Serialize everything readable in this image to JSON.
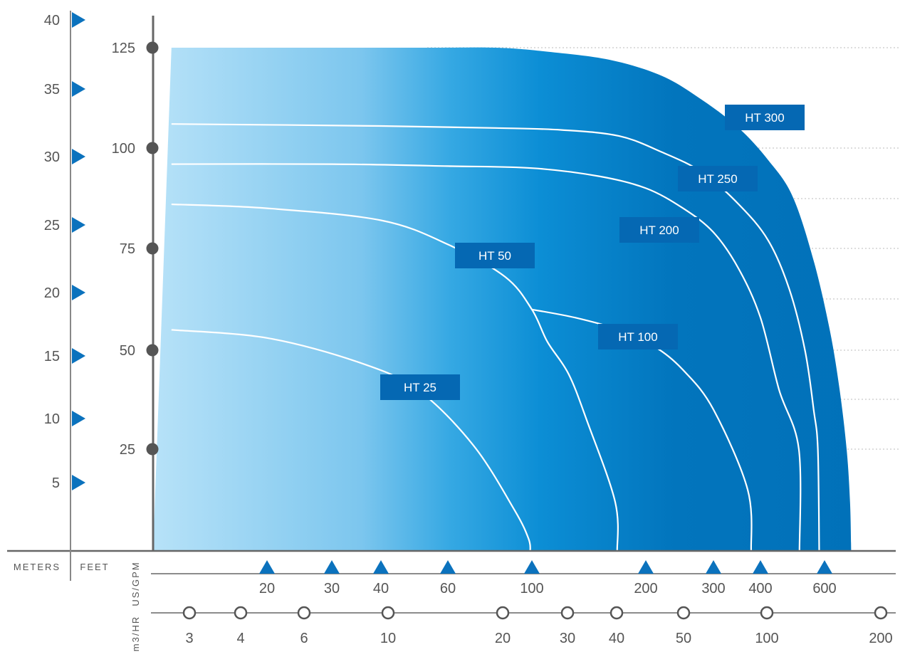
{
  "chart_data": {
    "type": "area",
    "axes": {
      "meters": {
        "unit": "METERS",
        "ticks": [
          5,
          10,
          15,
          20,
          25,
          30,
          35,
          40
        ]
      },
      "feet": {
        "unit": "FEET",
        "ticks": [
          25,
          50,
          75,
          100,
          125
        ]
      },
      "us_gpm": {
        "unit": "US/GPM",
        "scale": "log",
        "ticks": [
          20,
          30,
          40,
          60,
          100,
          200,
          300,
          400,
          600
        ]
      },
      "m3_hr": {
        "unit": "m3/HR",
        "scale": "log",
        "ticks": [
          3,
          4,
          6,
          10,
          20,
          30,
          40,
          50,
          100,
          200
        ]
      }
    },
    "series": [
      {
        "name": "HT 25",
        "x": [
          11,
          20,
          35,
          50,
          70,
          90,
          98,
          99
        ],
        "y": [
          55,
          53,
          47,
          40,
          26,
          10,
          3,
          0
        ]
      },
      {
        "name": "HT 50",
        "x": [
          11,
          20,
          40,
          60,
          85,
          100,
          110,
          125,
          140,
          166,
          168
        ],
        "y": [
          86,
          85,
          82,
          76,
          68,
          60,
          52,
          44,
          32,
          12,
          0
        ]
      },
      {
        "name": "HT 100",
        "x": [
          100,
          130,
          170,
          210,
          250,
          300,
          370,
          378,
          380
        ],
        "y": [
          60,
          58,
          55,
          51,
          45,
          35,
          15,
          0,
          0
        ]
      },
      {
        "name": "HT 200",
        "x": [
          11,
          30,
          60,
          100,
          150,
          200,
          250,
          300,
          350,
          400,
          450,
          510,
          512
        ],
        "y": [
          96,
          96,
          95.5,
          95,
          93,
          90,
          85,
          79,
          70,
          58,
          40,
          25,
          0
        ]
      },
      {
        "name": "HT 250",
        "x": [
          11,
          40,
          80,
          120,
          170,
          220,
          280,
          350,
          420,
          480,
          530,
          560,
          575,
          580
        ],
        "y": [
          106,
          105.5,
          105,
          104.5,
          103,
          99,
          94,
          86,
          77,
          65,
          50,
          35,
          25,
          0
        ]
      },
      {
        "name": "HT 300",
        "x": [
          11,
          50,
          80,
          110,
          160,
          220,
          280,
          350,
          420,
          490,
          560,
          620,
          660,
          690,
          705,
          710
        ],
        "y": [
          125,
          125,
          125,
          124,
          122,
          118,
          112,
          105,
          97,
          88,
          72,
          55,
          40,
          25,
          12,
          0
        ]
      }
    ],
    "ylim": [
      0,
      132
    ],
    "xlim": [
      11,
      715
    ]
  }
}
